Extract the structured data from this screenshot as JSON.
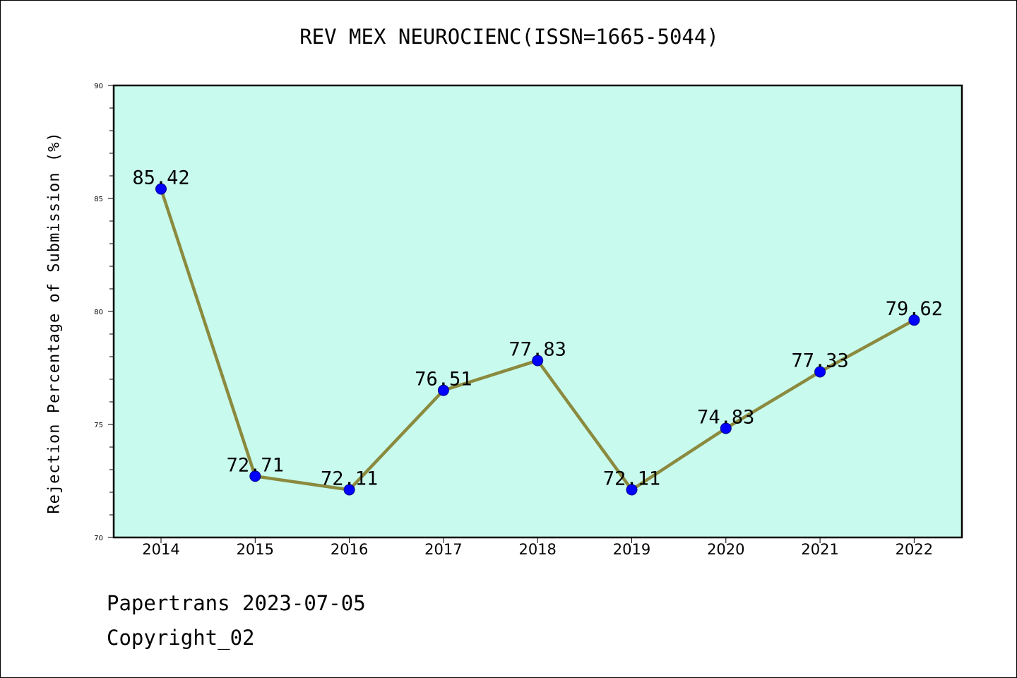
{
  "chart_data": {
    "type": "line",
    "title": "REV MEX NEUROCIENC(ISSN=1665-5044)",
    "xlabel": "",
    "ylabel": "Rejection Percentage of Submission (%)",
    "categories": [
      "2014",
      "2015",
      "2016",
      "2017",
      "2018",
      "2019",
      "2020",
      "2021",
      "2022"
    ],
    "series": [
      {
        "values": [
          85.42,
          72.71,
          72.11,
          76.51,
          77.83,
          72.11,
          74.83,
          77.33,
          79.62
        ],
        "labels": [
          "85.42",
          "72.71",
          "72.11",
          "76.51",
          "77.83",
          "72.11",
          "74.83",
          "77.33",
          "79.62"
        ]
      }
    ],
    "ylim": [
      70,
      90
    ],
    "yticks": [
      "70",
      "75",
      "80",
      "85",
      "90"
    ],
    "grid": false,
    "colors": {
      "plot_background": "#c8fbee",
      "line": "#8b8a3e",
      "marker": "#0000ff"
    }
  },
  "footer": {
    "line1": "Papertrans 2023-07-05",
    "line2": "Copyright_02"
  }
}
